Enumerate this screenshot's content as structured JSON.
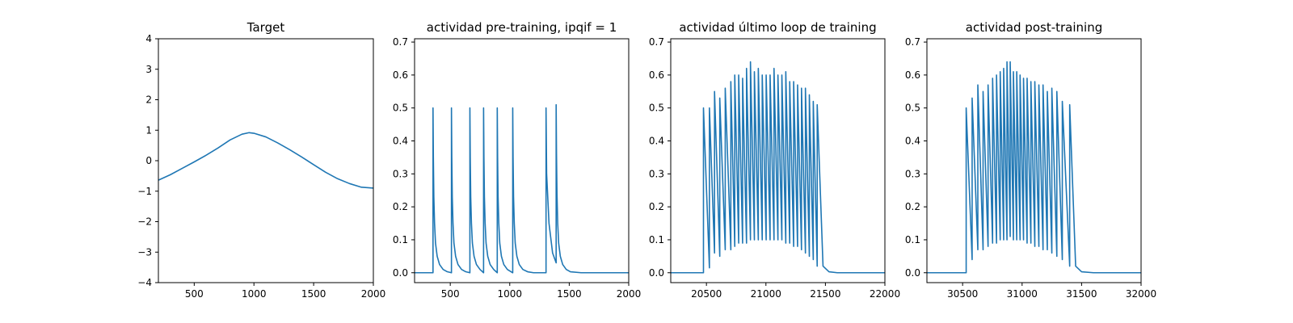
{
  "figure": {
    "colors": {
      "line": "#1f77b4",
      "axis": "#000000",
      "background": "#ffffff"
    }
  },
  "chart_data": [
    {
      "type": "line",
      "title": "Target",
      "xlabel": "",
      "ylabel": "",
      "xlim": [
        200,
        2000
      ],
      "ylim": [
        -4,
        4
      ],
      "xticks": [
        500,
        1000,
        1500,
        2000
      ],
      "yticks": [
        -4,
        -3,
        -2,
        -1,
        0,
        1,
        2,
        3,
        4
      ],
      "grid": false,
      "series": [
        {
          "x": [
            200,
            300,
            400,
            500,
            600,
            700,
            800,
            900,
            960,
            1000,
            1100,
            1200,
            1300,
            1400,
            1500,
            1600,
            1700,
            1800,
            1900,
            2000
          ],
          "y": [
            -0.64,
            -0.46,
            -0.25,
            -0.04,
            0.18,
            0.42,
            0.68,
            0.87,
            0.92,
            0.9,
            0.78,
            0.58,
            0.36,
            0.12,
            -0.13,
            -0.38,
            -0.59,
            -0.75,
            -0.87,
            -0.9
          ]
        }
      ]
    },
    {
      "type": "line",
      "title": "actividad pre-training, ipqif = 1",
      "xlabel": "",
      "ylabel": "",
      "xlim": [
        200,
        2000
      ],
      "ylim": [
        -0.03,
        0.71
      ],
      "xticks": [
        500,
        1000,
        1500,
        2000
      ],
      "yticks": [
        0.0,
        0.1,
        0.2,
        0.3,
        0.4,
        0.5,
        0.6,
        0.7
      ],
      "grid": false,
      "series": [
        {
          "x": [
            200,
            355,
            355,
            358,
            362,
            368,
            376,
            390,
            410,
            440,
            475,
            510,
            510,
            513,
            517,
            523,
            531,
            545,
            565,
            595,
            630,
            665,
            665,
            668,
            672,
            678,
            686,
            700,
            720,
            750,
            780,
            780,
            783,
            787,
            793,
            801,
            815,
            835,
            865,
            895,
            895,
            898,
            902,
            908,
            916,
            930,
            950,
            980,
            1025,
            1025,
            1028,
            1032,
            1038,
            1046,
            1060,
            1080,
            1110,
            1150,
            1200,
            1250,
            1305,
            1305,
            1310,
            1330,
            1360,
            1390,
            1390,
            1393,
            1397,
            1403,
            1411,
            1425,
            1445,
            1475,
            1510,
            1600,
            1700,
            1800,
            1900,
            2000
          ],
          "y": [
            0,
            0,
            0.5,
            0.35,
            0.23,
            0.15,
            0.09,
            0.05,
            0.025,
            0.01,
            0.003,
            0,
            0.5,
            0.35,
            0.23,
            0.15,
            0.09,
            0.05,
            0.025,
            0.01,
            0.003,
            0,
            0.5,
            0.35,
            0.23,
            0.15,
            0.09,
            0.05,
            0.025,
            0.01,
            0,
            0.5,
            0.35,
            0.23,
            0.15,
            0.09,
            0.05,
            0.025,
            0.01,
            0,
            0.5,
            0.35,
            0.23,
            0.15,
            0.09,
            0.05,
            0.025,
            0.01,
            0,
            0.5,
            0.35,
            0.23,
            0.15,
            0.09,
            0.05,
            0.025,
            0.01,
            0.003,
            0,
            0,
            0,
            0.5,
            0.3,
            0.15,
            0.06,
            0.03,
            0.51,
            0.36,
            0.24,
            0.15,
            0.09,
            0.05,
            0.025,
            0.01,
            0.003,
            0,
            0,
            0,
            0,
            0
          ]
        }
      ]
    },
    {
      "type": "line",
      "title": "actividad último loop de training",
      "xlabel": "",
      "ylabel": "",
      "xlim": [
        20200,
        22000
      ],
      "ylim": [
        -0.03,
        0.71
      ],
      "xticks": [
        20500,
        21000,
        21500,
        22000
      ],
      "yticks": [
        0.0,
        0.1,
        0.2,
        0.3,
        0.4,
        0.5,
        0.6,
        0.7
      ],
      "grid": false,
      "series": [
        {
          "x": [
            20200,
            20475,
            20475,
            20525,
            20525,
            20568,
            20568,
            20612,
            20612,
            20658,
            20658,
            20705,
            20705,
            20738,
            20738,
            20771,
            20771,
            20804,
            20804,
            20837,
            20837,
            20870,
            20870,
            20903,
            20903,
            20936,
            20936,
            20969,
            20969,
            21002,
            21002,
            21035,
            21035,
            21068,
            21068,
            21101,
            21101,
            21134,
            21134,
            21167,
            21167,
            21200,
            21200,
            21233,
            21233,
            21266,
            21266,
            21299,
            21299,
            21332,
            21332,
            21365,
            21365,
            21398,
            21398,
            21431,
            21431,
            21480,
            21530,
            21600,
            22000
          ],
          "y": [
            0,
            0,
            0.5,
            0.015,
            0.5,
            0.06,
            0.55,
            0.05,
            0.53,
            0.07,
            0.56,
            0.07,
            0.58,
            0.08,
            0.6,
            0.09,
            0.6,
            0.09,
            0.59,
            0.09,
            0.62,
            0.1,
            0.64,
            0.1,
            0.61,
            0.1,
            0.62,
            0.1,
            0.6,
            0.1,
            0.6,
            0.1,
            0.6,
            0.1,
            0.62,
            0.1,
            0.6,
            0.1,
            0.6,
            0.09,
            0.61,
            0.09,
            0.58,
            0.08,
            0.58,
            0.08,
            0.57,
            0.07,
            0.56,
            0.06,
            0.56,
            0.05,
            0.54,
            0.04,
            0.52,
            0.02,
            0.51,
            0.02,
            0.003,
            0,
            0
          ]
        }
      ]
    },
    {
      "type": "line",
      "title": "actividad post-training",
      "xlabel": "",
      "ylabel": "",
      "xlim": [
        30200,
        32000
      ],
      "ylim": [
        -0.03,
        0.71
      ],
      "xticks": [
        30500,
        31000,
        31500,
        32000
      ],
      "yticks": [
        0.0,
        0.1,
        0.2,
        0.3,
        0.4,
        0.5,
        0.6,
        0.7
      ],
      "grid": false,
      "series": [
        {
          "x": [
            30200,
            30530,
            30530,
            30580,
            30580,
            30628,
            30628,
            30672,
            30672,
            30714,
            30714,
            30752,
            30752,
            30785,
            30785,
            30816,
            30816,
            30845,
            30845,
            30873,
            30873,
            30900,
            30900,
            30927,
            30927,
            30955,
            30955,
            30983,
            30983,
            31012,
            31012,
            31042,
            31042,
            31074,
            31074,
            31107,
            31107,
            31141,
            31141,
            31176,
            31176,
            31212,
            31212,
            31250,
            31250,
            31292,
            31292,
            31338,
            31338,
            31400,
            31400,
            31450,
            31500,
            31600,
            32000
          ],
          "y": [
            0,
            0,
            0.5,
            0.04,
            0.53,
            0.07,
            0.57,
            0.07,
            0.55,
            0.08,
            0.57,
            0.09,
            0.59,
            0.09,
            0.6,
            0.1,
            0.61,
            0.1,
            0.62,
            0.1,
            0.64,
            0.11,
            0.64,
            0.1,
            0.61,
            0.1,
            0.61,
            0.1,
            0.6,
            0.1,
            0.59,
            0.09,
            0.59,
            0.09,
            0.58,
            0.08,
            0.58,
            0.08,
            0.57,
            0.07,
            0.57,
            0.07,
            0.55,
            0.06,
            0.56,
            0.05,
            0.55,
            0.04,
            0.52,
            0.02,
            0.51,
            0.02,
            0.003,
            0,
            0
          ]
        }
      ]
    }
  ]
}
